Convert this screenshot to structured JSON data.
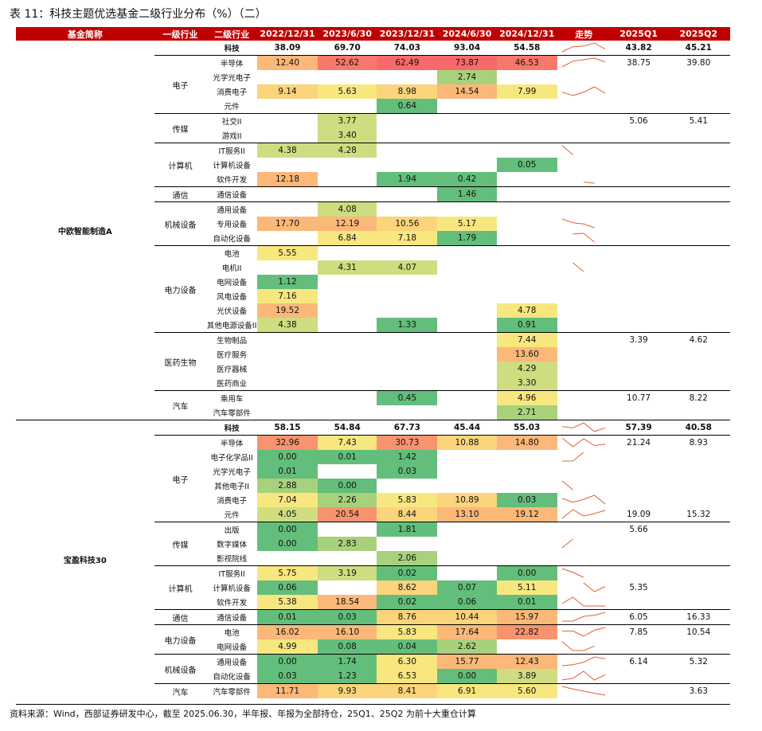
{
  "title": "表 11：科技主题优选基金二级行业分布（%）（二）",
  "headers": [
    "基金简称",
    "一级行业",
    "二级行业",
    "2022/12/31",
    "2023/6/30",
    "2023/12/31",
    "2024/6/30",
    "2024/12/31",
    "走势",
    "2025Q1",
    "2025Q2"
  ],
  "note": "资料来源：Wind，西部证券研发中心，截至 2025.06.30，半年报、年报为全部持仓，25Q1、25Q2 为前十大重仓计算",
  "colors": {
    "header_bg": "#c00000",
    "trend_line": "#e06030"
  },
  "funds": [
    {
      "name": "中欧智能制造A",
      "summary": {
        "label": "科技",
        "values": [
          "38.09",
          "69.70",
          "74.03",
          "93.04",
          "54.58"
        ],
        "q1": "43.82",
        "q2": "45.21"
      },
      "groups": [
        {
          "name": "电子",
          "rows": [
            {
              "name": "半导体",
              "values": [
                "12.40",
                "52.62",
                "62.49",
                "73.87",
                "46.53"
              ],
              "q1": "38.75",
              "q2": "39.80"
            },
            {
              "name": "光学光电子",
              "values": [
                "",
                "",
                "",
                "2.74",
                ""
              ],
              "q1": "",
              "q2": ""
            },
            {
              "name": "消费电子",
              "values": [
                "9.14",
                "5.63",
                "8.98",
                "14.54",
                "7.99"
              ],
              "q1": "",
              "q2": ""
            },
            {
              "name": "元件",
              "values": [
                "",
                "",
                "0.64",
                "",
                ""
              ],
              "q1": "",
              "q2": ""
            }
          ]
        },
        {
          "name": "传媒",
          "rows": [
            {
              "name": "社交II",
              "values": [
                "",
                "3.77",
                "",
                "",
                ""
              ],
              "q1": "5.06",
              "q2": "5.41"
            },
            {
              "name": "游戏II",
              "values": [
                "",
                "3.40",
                "",
                "",
                ""
              ],
              "q1": "",
              "q2": ""
            }
          ]
        },
        {
          "name": "计算机",
          "rows": [
            {
              "name": "IT服务II",
              "values": [
                "4.38",
                "4.28",
                "",
                "",
                ""
              ],
              "q1": "",
              "q2": ""
            },
            {
              "name": "计算机设备",
              "values": [
                "",
                "",
                "",
                "",
                "0.05"
              ],
              "q1": "",
              "q2": ""
            },
            {
              "name": "软件开发",
              "values": [
                "12.18",
                "",
                "1.94",
                "0.42",
                ""
              ],
              "q1": "",
              "q2": ""
            }
          ]
        },
        {
          "name": "通信",
          "rows": [
            {
              "name": "通信设备",
              "values": [
                "",
                "",
                "",
                "1.46",
                ""
              ],
              "q1": "",
              "q2": ""
            }
          ]
        },
        {
          "name": "机械设备",
          "rows": [
            {
              "name": "通用设备",
              "values": [
                "",
                "4.08",
                "",
                "",
                ""
              ],
              "q1": "",
              "q2": ""
            },
            {
              "name": "专用设备",
              "values": [
                "17.70",
                "12.19",
                "10.56",
                "5.17",
                ""
              ],
              "q1": "",
              "q2": ""
            },
            {
              "name": "自动化设备",
              "values": [
                "",
                "6.84",
                "7.18",
                "1.79",
                ""
              ],
              "q1": "",
              "q2": ""
            }
          ]
        },
        {
          "name": "电力设备",
          "rows": [
            {
              "name": "电池",
              "values": [
                "5.55",
                "",
                "",
                "",
                ""
              ],
              "q1": "",
              "q2": ""
            },
            {
              "name": "电机II",
              "values": [
                "",
                "4.31",
                "4.07",
                "",
                ""
              ],
              "q1": "",
              "q2": ""
            },
            {
              "name": "电网设备",
              "values": [
                "1.12",
                "",
                "",
                "",
                ""
              ],
              "q1": "",
              "q2": ""
            },
            {
              "name": "风电设备",
              "values": [
                "7.16",
                "",
                "",
                "",
                ""
              ],
              "q1": "",
              "q2": ""
            },
            {
              "name": "光伏设备",
              "values": [
                "19.52",
                "",
                "",
                "",
                "4.78"
              ],
              "q1": "",
              "q2": ""
            },
            {
              "name": "其他电源设备II",
              "values": [
                "4.38",
                "",
                "1.33",
                "",
                "0.91"
              ],
              "q1": "",
              "q2": ""
            }
          ]
        },
        {
          "name": "医药生物",
          "rows": [
            {
              "name": "生物制品",
              "values": [
                "",
                "",
                "",
                "",
                "7.44"
              ],
              "q1": "3.39",
              "q2": "4.62"
            },
            {
              "name": "医疗服务",
              "values": [
                "",
                "",
                "",
                "",
                "13.60"
              ],
              "q1": "",
              "q2": ""
            },
            {
              "name": "医疗器械",
              "values": [
                "",
                "",
                "",
                "",
                "4.29"
              ],
              "q1": "",
              "q2": ""
            },
            {
              "name": "医药商业",
              "values": [
                "",
                "",
                "",
                "",
                "3.30"
              ],
              "q1": "",
              "q2": ""
            }
          ]
        },
        {
          "name": "汽车",
          "rows": [
            {
              "name": "乘用车",
              "values": [
                "",
                "",
                "0.45",
                "",
                "4.96"
              ],
              "q1": "10.77",
              "q2": "8.22"
            },
            {
              "name": "汽车零部件",
              "values": [
                "",
                "",
                "",
                "",
                "2.71"
              ],
              "q1": "",
              "q2": ""
            }
          ]
        }
      ]
    },
    {
      "name": "宝盈科技30",
      "summary": {
        "label": "科技",
        "values": [
          "58.15",
          "54.84",
          "67.73",
          "45.44",
          "55.03"
        ],
        "q1": "57.39",
        "q2": "40.58"
      },
      "groups": [
        {
          "name": "电子",
          "rows": [
            {
              "name": "半导体",
              "values": [
                "32.96",
                "7.43",
                "30.73",
                "10.88",
                "14.80"
              ],
              "q1": "21.24",
              "q2": "8.93"
            },
            {
              "name": "电子化学品II",
              "values": [
                "0.00",
                "0.01",
                "1.42",
                "",
                ""
              ],
              "q1": "",
              "q2": ""
            },
            {
              "name": "光学光电子",
              "values": [
                "0.01",
                "",
                "0.03",
                "",
                ""
              ],
              "q1": "",
              "q2": ""
            },
            {
              "name": "其他电子II",
              "values": [
                "2.88",
                "0.00",
                "",
                "",
                ""
              ],
              "q1": "",
              "q2": ""
            },
            {
              "name": "消费电子",
              "values": [
                "7.04",
                "2.26",
                "5.83",
                "10.89",
                "0.03"
              ],
              "q1": "",
              "q2": ""
            },
            {
              "name": "元件",
              "values": [
                "4.05",
                "20.54",
                "8.44",
                "13.10",
                "19.12"
              ],
              "q1": "19.09",
              "q2": "15.32"
            }
          ]
        },
        {
          "name": "传媒",
          "rows": [
            {
              "name": "出版",
              "values": [
                "0.00",
                "",
                "1.81",
                "",
                ""
              ],
              "q1": "5.66",
              "q2": ""
            },
            {
              "name": "数字媒体",
              "values": [
                "0.00",
                "2.83",
                "",
                "",
                ""
              ],
              "q1": "",
              "q2": ""
            },
            {
              "name": "影视院线",
              "values": [
                "",
                "",
                "2.06",
                "",
                ""
              ],
              "q1": "",
              "q2": ""
            }
          ]
        },
        {
          "name": "计算机",
          "rows": [
            {
              "name": "IT服务II",
              "values": [
                "5.75",
                "3.19",
                "0.02",
                "",
                "0.00"
              ],
              "q1": "",
              "q2": ""
            },
            {
              "name": "计算机设备",
              "values": [
                "0.06",
                "",
                "8.62",
                "0.07",
                "5.11"
              ],
              "q1": "5.35",
              "q2": ""
            },
            {
              "name": "软件开发",
              "values": [
                "5.38",
                "18.54",
                "0.02",
                "0.06",
                "0.01"
              ],
              "q1": "",
              "q2": ""
            }
          ]
        },
        {
          "name": "通信",
          "rows": [
            {
              "name": "通信设备",
              "values": [
                "0.01",
                "0.03",
                "8.76",
                "10.44",
                "15.97"
              ],
              "q1": "6.05",
              "q2": "16.33"
            }
          ]
        },
        {
          "name": "电力设备",
          "rows": [
            {
              "name": "电池",
              "values": [
                "16.02",
                "16.10",
                "5.83",
                "17.64",
                "22.82"
              ],
              "q1": "7.85",
              "q2": "10.54"
            },
            {
              "name": "电网设备",
              "values": [
                "4.99",
                "0.08",
                "0.04",
                "2.62",
                ""
              ],
              "q1": "",
              "q2": ""
            }
          ]
        },
        {
          "name": "机械设备",
          "rows": [
            {
              "name": "通用设备",
              "values": [
                "0.00",
                "1.74",
                "6.30",
                "15.77",
                "12.43"
              ],
              "q1": "6.14",
              "q2": "5.32"
            },
            {
              "name": "自动化设备",
              "values": [
                "0.03",
                "1.23",
                "6.53",
                "0.00",
                "3.89"
              ],
              "q1": "",
              "q2": ""
            }
          ]
        },
        {
          "name": "汽车",
          "rows": [
            {
              "name": "汽车零部件",
              "values": [
                "11.71",
                "9.93",
                "8.41",
                "6.91",
                "5.60"
              ],
              "q1": "",
              "q2": "3.63"
            }
          ]
        }
      ]
    }
  ]
}
